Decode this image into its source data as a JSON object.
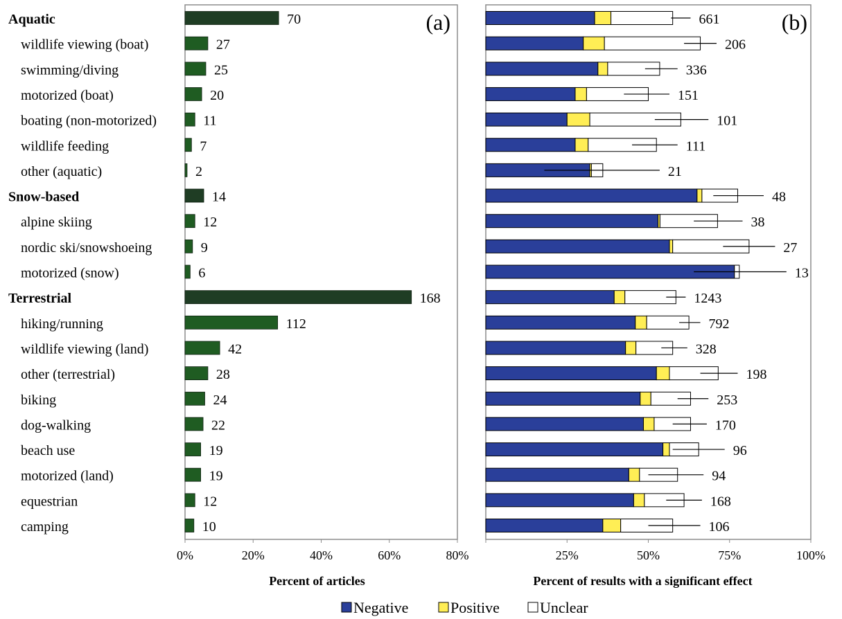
{
  "colors": {
    "group_bar": "#1f3d24",
    "item_bar": "#1f5c22",
    "negative": "#2a3f9a",
    "positive": "#ffee55",
    "unclear": "#ffffff",
    "frame": "#8c8c8c"
  },
  "chart_data": [
    {
      "type": "bar",
      "orientation": "horizontal",
      "panel_label": "(a)",
      "xlabel": "Percent of articles",
      "xlim": [
        0,
        80
      ],
      "xticks": [
        "0%",
        "20%",
        "40%",
        "60%",
        "80%"
      ],
      "grid": false,
      "categories": [
        {
          "label": "Aquatic",
          "group": true,
          "count": 70,
          "percent": 27.5
        },
        {
          "label": "wildlife viewing (boat)",
          "group": false,
          "count": 27,
          "percent": 6.7
        },
        {
          "label": "swimming/diving",
          "group": false,
          "count": 25,
          "percent": 6.1
        },
        {
          "label": "motorized (boat)",
          "group": false,
          "count": 20,
          "percent": 4.9
        },
        {
          "label": "boating (non-motorized)",
          "group": false,
          "count": 11,
          "percent": 2.9
        },
        {
          "label": "wildlife feeding",
          "group": false,
          "count": 7,
          "percent": 1.9
        },
        {
          "label": "other (aquatic)",
          "group": false,
          "count": 2,
          "percent": 0.6
        },
        {
          "label": "Snow-based",
          "group": true,
          "count": 14,
          "percent": 5.5
        },
        {
          "label": "alpine skiing",
          "group": false,
          "count": 12,
          "percent": 2.9
        },
        {
          "label": "nordic ski/snowshoeing",
          "group": false,
          "count": 9,
          "percent": 2.2
        },
        {
          "label": "motorized (snow)",
          "group": false,
          "count": 6,
          "percent": 1.5
        },
        {
          "label": "Terrestrial",
          "group": true,
          "count": 168,
          "percent": 66.5
        },
        {
          "label": "hiking/running",
          "group": false,
          "count": 112,
          "percent": 27.2
        },
        {
          "label": "wildlife viewing (land)",
          "group": false,
          "count": 42,
          "percent": 10.2
        },
        {
          "label": "other (terrestrial)",
          "group": false,
          "count": 28,
          "percent": 6.7
        },
        {
          "label": "biking",
          "group": false,
          "count": 24,
          "percent": 5.8
        },
        {
          "label": "dog-walking",
          "group": false,
          "count": 22,
          "percent": 5.3
        },
        {
          "label": "beach use",
          "group": false,
          "count": 19,
          "percent": 4.6
        },
        {
          "label": "motorized (land)",
          "group": false,
          "count": 19,
          "percent": 4.6
        },
        {
          "label": "equestrian",
          "group": false,
          "count": 12,
          "percent": 2.9
        },
        {
          "label": "camping",
          "group": false,
          "count": 10,
          "percent": 2.6
        }
      ]
    },
    {
      "type": "bar",
      "orientation": "horizontal",
      "stacked": true,
      "panel_label": "(b)",
      "xlabel": "Percent of results with a significant effect",
      "xlim": [
        0,
        100
      ],
      "xticks": [
        "25%",
        "50%",
        "75%",
        "100%"
      ],
      "legend": [
        "Negative",
        "Positive",
        "Unclear"
      ],
      "legend_position": "bottom",
      "grid": false,
      "series_keys": [
        "negative",
        "positive",
        "unclear"
      ],
      "rows": [
        {
          "negative": 33.5,
          "positive": 5.0,
          "unclear": 19.0,
          "err": [
            57.0,
            63.0
          ],
          "n": 661
        },
        {
          "negative": 30.0,
          "positive": 6.5,
          "unclear": 29.5,
          "err": [
            61.0,
            71.0
          ],
          "n": 206
        },
        {
          "negative": 34.5,
          "positive": 3.0,
          "unclear": 16.0,
          "err": [
            49.0,
            59.0
          ],
          "n": 336
        },
        {
          "negative": 27.5,
          "positive": 3.5,
          "unclear": 19.0,
          "err": [
            42.5,
            56.5
          ],
          "n": 151
        },
        {
          "negative": 25.0,
          "positive": 7.0,
          "unclear": 28.0,
          "err": [
            52.0,
            68.5
          ],
          "n": 101
        },
        {
          "negative": 27.5,
          "positive": 4.0,
          "unclear": 21.0,
          "err": [
            45.0,
            59.0
          ],
          "n": 111
        },
        {
          "negative": 32.0,
          "positive": 0.5,
          "unclear": 3.5,
          "err": [
            18.0,
            53.5
          ],
          "n": 21
        },
        {
          "negative": 65.0,
          "positive": 1.5,
          "unclear": 11.0,
          "err": [
            70.0,
            85.5
          ],
          "n": 48
        },
        {
          "negative": 53.0,
          "positive": 0.6,
          "unclear": 17.7,
          "err": [
            64.0,
            79.0
          ],
          "n": 38
        },
        {
          "negative": 56.5,
          "positive": 1.0,
          "unclear": 23.5,
          "err": [
            73.0,
            89.0
          ],
          "n": 27
        },
        {
          "negative": 76.5,
          "positive": 0.0,
          "unclear": 1.5,
          "err": [
            64.0,
            92.5
          ],
          "n": 13
        },
        {
          "negative": 39.5,
          "positive": 3.3,
          "unclear": 15.7,
          "err": [
            55.5,
            61.5
          ],
          "n": 1243
        },
        {
          "negative": 46.0,
          "positive": 3.5,
          "unclear": 13.0,
          "err": [
            59.5,
            66.0
          ],
          "n": 792
        },
        {
          "negative": 43.0,
          "positive": 3.2,
          "unclear": 11.3,
          "err": [
            54.0,
            62.0
          ],
          "n": 328
        },
        {
          "negative": 52.5,
          "positive": 4.0,
          "unclear": 15.0,
          "err": [
            66.0,
            77.5
          ],
          "n": 198
        },
        {
          "negative": 47.5,
          "positive": 3.3,
          "unclear": 12.2,
          "err": [
            59.0,
            68.5
          ],
          "n": 253
        },
        {
          "negative": 48.5,
          "positive": 3.3,
          "unclear": 11.2,
          "err": [
            57.5,
            68.0
          ],
          "n": 170
        },
        {
          "negative": 54.5,
          "positive": 2.0,
          "unclear": 9.0,
          "err": [
            57.5,
            73.5
          ],
          "n": 96
        },
        {
          "negative": 44.0,
          "positive": 3.3,
          "unclear": 11.7,
          "err": [
            50.0,
            67.0
          ],
          "n": 94
        },
        {
          "negative": 45.5,
          "positive": 3.3,
          "unclear": 12.2,
          "err": [
            55.5,
            66.5
          ],
          "n": 168
        },
        {
          "negative": 36.0,
          "positive": 5.5,
          "unclear": 16.0,
          "err": [
            50.0,
            66.0
          ],
          "n": 106
        }
      ]
    }
  ]
}
